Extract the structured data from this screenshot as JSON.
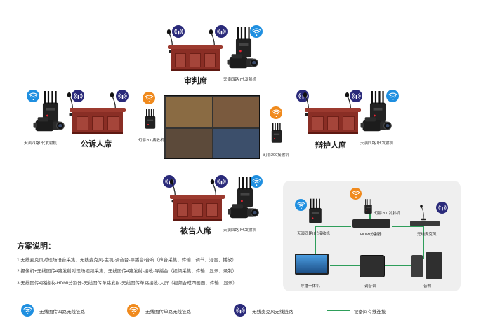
{
  "seats": {
    "judge": {
      "label": "审判席",
      "device": "天演四路II代发射机"
    },
    "prosecution": {
      "label": "公诉人席",
      "device": "天演四路II代发射机"
    },
    "defense": {
      "label": "辩护人席",
      "device": "天演四路II代发射机"
    },
    "defendant": {
      "label": "被告人席",
      "device": "天演四路II代发射机"
    }
  },
  "receivers": {
    "left": "幻影200接收机",
    "right": "幻影200接收机"
  },
  "network": {
    "transmitter": "幻影200发射机",
    "receiver4": "天演四路II代接收机",
    "hdmi_splitter": "HDMI分割器",
    "wireless_mic": "无线麦克风",
    "director": "导播一体机",
    "mixer": "调音台",
    "speaker": "音响"
  },
  "explanation": {
    "title": "方案说明：",
    "lines": [
      "1.无线麦克风对现场语音采集、无线麦克风-主机-调音台-导播台/音响（声音采集、传输、调节、混合、播放）",
      "2.摄像机+无线图传4路发射对现场视频采集，无线图传4路发射-接收-导播台（视频采集、传输、显示、录制）",
      "3.无线图传4路接收-HDMI分割器-无线图传单路发射-无线图传单路接收-大屏（视频合成四画面、传输、显示）"
    ]
  },
  "legend": {
    "blue": "无线图传四路无线链路",
    "orange": "无线图传单路无线链路",
    "navy": "无线麦克风无线链路",
    "green": "设备间有线连接"
  },
  "colors": {
    "blue": "#1f8fe0",
    "orange": "#f08a1d",
    "navy": "#2a2a7a",
    "green": "#2e9e5a",
    "podium": "#8a2e25"
  }
}
